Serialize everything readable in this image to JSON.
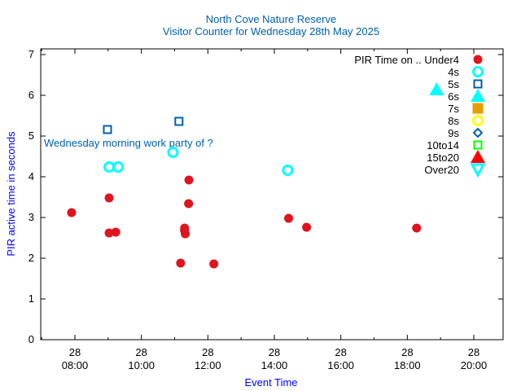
{
  "chart_data": {
    "type": "scatter",
    "title": "North Cove Nature Reserve",
    "subtitle": "Visitor Counter for Wednesday 28th May 2025",
    "xlabel": "Event Time",
    "ylabel": "PIR active time in seconds",
    "xlim_hours": [
      7.0,
      20.88
    ],
    "ylim": [
      0,
      7.14
    ],
    "x_ticks": [
      {
        "hour": 8,
        "day": "28",
        "time": "08:00"
      },
      {
        "hour": 10,
        "day": "28",
        "time": "10:00"
      },
      {
        "hour": 12,
        "day": "28",
        "time": "12:00"
      },
      {
        "hour": 14,
        "day": "28",
        "time": "14:00"
      },
      {
        "hour": 16,
        "day": "28",
        "time": "16:00"
      },
      {
        "hour": 18,
        "day": "28",
        "time": "18:00"
      },
      {
        "hour": 20,
        "day": "28",
        "time": "20:00"
      }
    ],
    "y_ticks": [
      "0",
      "1",
      "2",
      "3",
      "4",
      "5",
      "6",
      "7"
    ],
    "legend_title": "PIR Time on ..",
    "legend_position": "top-right",
    "annotation": {
      "text": "Wednesday morning work party of ?",
      "x_hour": 7.07,
      "y": 4.84
    },
    "series": [
      {
        "name": "Under4",
        "marker": "filled-circle",
        "color": "#e0141e",
        "points": [
          [
            7.9,
            3.12
          ],
          [
            9.03,
            3.48
          ],
          [
            9.03,
            2.62
          ],
          [
            9.23,
            2.64
          ],
          [
            11.43,
            3.92
          ],
          [
            11.42,
            3.34
          ],
          [
            11.3,
            2.74
          ],
          [
            11.3,
            2.68
          ],
          [
            11.32,
            2.6
          ],
          [
            11.18,
            1.88
          ],
          [
            12.18,
            1.86
          ],
          [
            14.43,
            2.98
          ],
          [
            14.97,
            2.76
          ],
          [
            18.28,
            2.74
          ]
        ]
      },
      {
        "name": "4s",
        "marker": "open-circle",
        "color": "#00ffff",
        "points": [
          [
            9.03,
            4.24
          ],
          [
            9.3,
            4.24
          ],
          [
            10.95,
            4.6
          ],
          [
            14.4,
            4.16
          ]
        ]
      },
      {
        "name": "5s",
        "marker": "open-square",
        "color": "#0060ad",
        "points": [
          [
            8.98,
            5.16
          ],
          [
            11.13,
            5.36
          ]
        ]
      },
      {
        "name": "6s",
        "marker": "filled-triangle",
        "color": "#00ffff",
        "points": [
          [
            18.88,
            6.14
          ]
        ]
      },
      {
        "name": "7s",
        "marker": "filled-square",
        "color": "#e69f00",
        "points": []
      },
      {
        "name": "8s",
        "marker": "open-circle",
        "color": "#ffff00",
        "points": []
      },
      {
        "name": "9s",
        "marker": "open-diamond",
        "color": "#0060ad",
        "points": []
      },
      {
        "name": "10to14",
        "marker": "open-square",
        "color": "#00ff00",
        "points": []
      },
      {
        "name": "15to20",
        "marker": "filled-triangle",
        "color": "#ff0000",
        "points": []
      },
      {
        "name": "Over20",
        "marker": "open-triangle-down",
        "color": "#00ffff",
        "points": []
      }
    ]
  }
}
